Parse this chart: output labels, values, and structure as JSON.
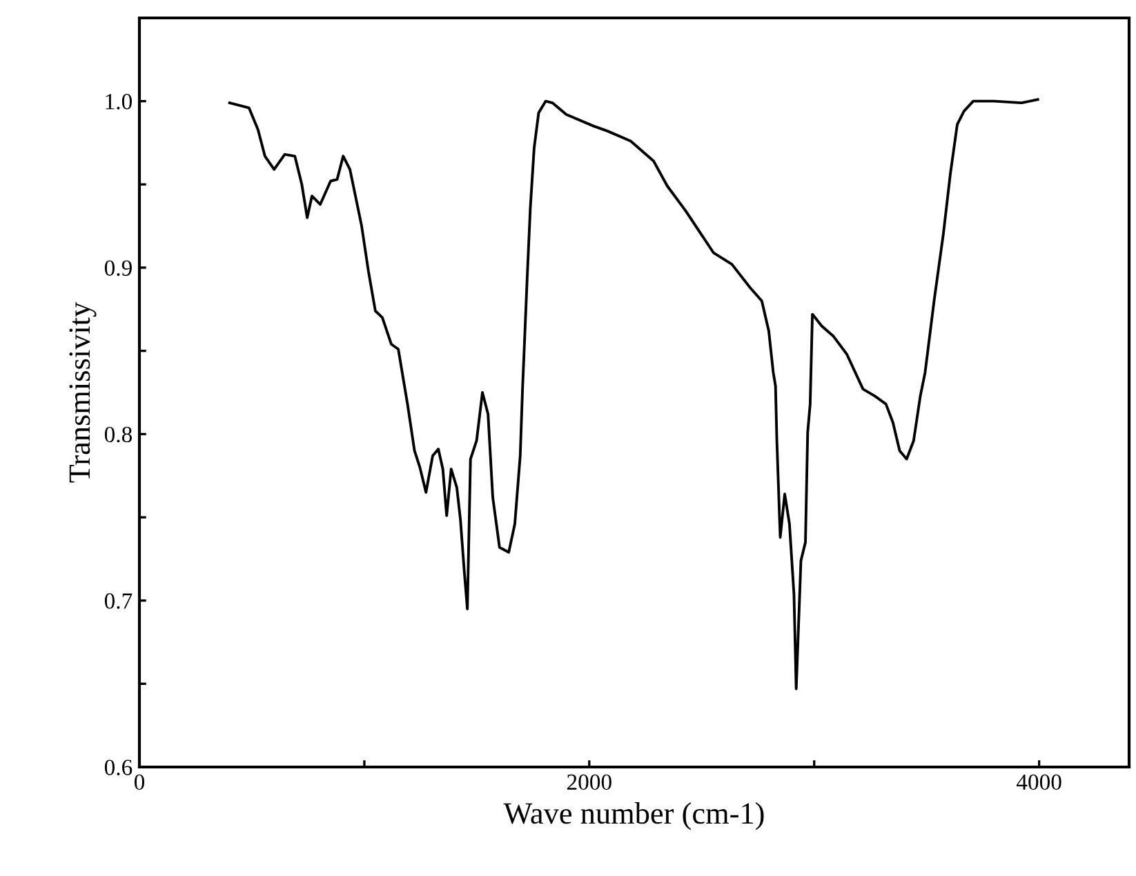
{
  "chart_data": {
    "type": "line",
    "xlabel": "Wave number (cm-1)",
    "ylabel": "Transmissivity",
    "xlim": [
      0,
      4400
    ],
    "ylim": [
      0.6,
      1.05
    ],
    "xticks": [
      0,
      {
        "value": 1000,
        "label": null
      },
      2000,
      {
        "value": 3000,
        "label": null
      },
      4000
    ],
    "yticks": [
      0.6,
      {
        "value": 0.65,
        "label": null
      },
      0.7,
      {
        "value": 0.75,
        "label": null
      },
      0.8,
      {
        "value": 0.85,
        "label": null
      },
      0.9,
      {
        "value": 0.95,
        "label": null
      },
      {
        "value": 1.0,
        "label": "1.0"
      },
      {
        "value": 1.05,
        "label": null
      }
    ],
    "grid": false,
    "legend": false,
    "marker": "none",
    "line_style": "solid",
    "x": [
      401,
      487,
      527,
      558,
      599,
      646,
      691,
      722,
      746,
      767,
      804,
      850,
      879,
      906,
      936,
      988,
      1018,
      1049,
      1080,
      1120,
      1151,
      1182,
      1192,
      1223,
      1247,
      1274,
      1304,
      1329,
      1349,
      1366,
      1386,
      1411,
      1427,
      1444,
      1458,
      1472,
      1499,
      1525,
      1550,
      1571,
      1601,
      1642,
      1669,
      1693,
      1703,
      1724,
      1738,
      1755,
      1775,
      1806,
      1836,
      1898,
      2020,
      2082,
      2184,
      2286,
      2347,
      2429,
      2552,
      2634,
      2715,
      2767,
      2798,
      2818,
      2828,
      2834,
      2849,
      2869,
      2890,
      2910,
      2920,
      2941,
      2961,
      2971,
      2982,
      2992,
      3033,
      3084,
      3145,
      3217,
      3268,
      3319,
      3350,
      3380,
      3411,
      3442,
      3472,
      3493,
      3534,
      3574,
      3605,
      3636,
      3666,
      3707,
      3799,
      3922,
      3994
    ],
    "series": [
      {
        "color": "#000000",
        "values": [
          0.999,
          0.996,
          0.983,
          0.967,
          0.959,
          0.968,
          0.967,
          0.95,
          0.93,
          0.943,
          0.938,
          0.952,
          0.953,
          0.967,
          0.959,
          0.925,
          0.898,
          0.874,
          0.87,
          0.854,
          0.851,
          0.826,
          0.818,
          0.79,
          0.78,
          0.765,
          0.787,
          0.791,
          0.779,
          0.751,
          0.779,
          0.768,
          0.749,
          0.718,
          0.695,
          0.785,
          0.796,
          0.825,
          0.812,
          0.762,
          0.732,
          0.729,
          0.746,
          0.787,
          0.826,
          0.894,
          0.936,
          0.972,
          0.993,
          1.0,
          0.999,
          0.992,
          0.985,
          0.982,
          0.976,
          0.964,
          0.949,
          0.934,
          0.909,
          0.902,
          0.888,
          0.88,
          0.862,
          0.837,
          0.829,
          0.796,
          0.738,
          0.764,
          0.746,
          0.704,
          0.647,
          0.724,
          0.735,
          0.801,
          0.818,
          0.872,
          0.865,
          0.859,
          0.848,
          0.827,
          0.823,
          0.818,
          0.807,
          0.79,
          0.785,
          0.796,
          0.823,
          0.837,
          0.881,
          0.92,
          0.956,
          0.986,
          0.994,
          1.0,
          1.0,
          0.999,
          1.001
        ]
      }
    ]
  }
}
